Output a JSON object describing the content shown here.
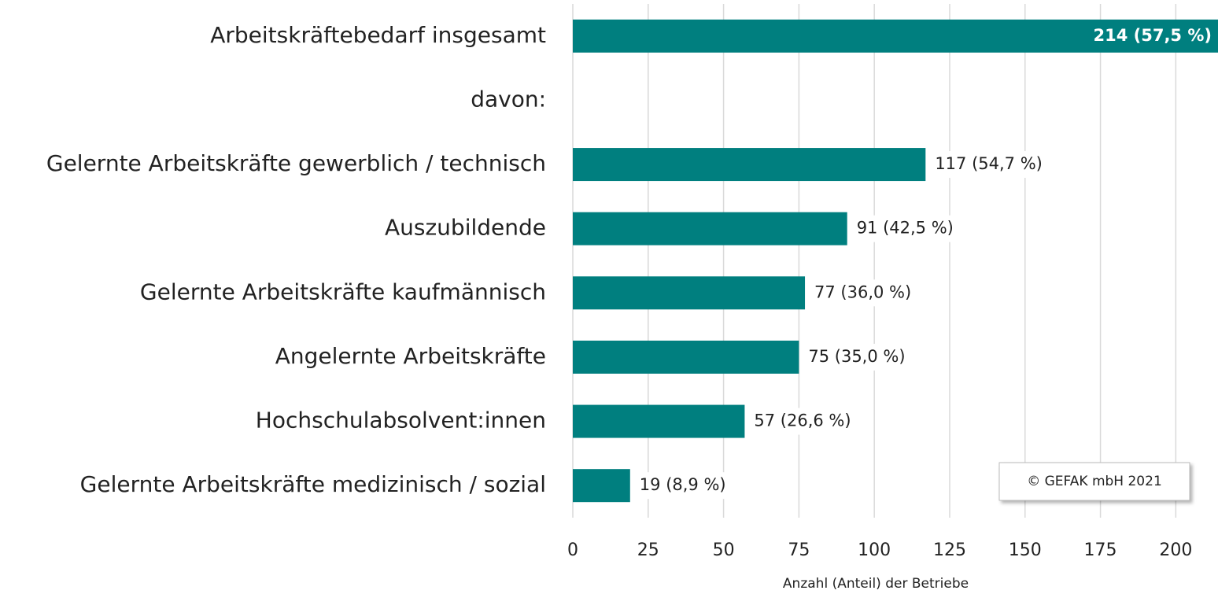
{
  "chart_data": {
    "type": "hbar",
    "categories": [
      "Arbeitskräftebedarf insgesamt",
      "davon:",
      "Gelernte Arbeitskräfte gewerblich / technisch",
      "Auszubildende",
      "Gelernte Arbeitskräfte kaufmännisch",
      "Angelernte Arbeitskräfte",
      "Hochschulabsolvent:innen",
      "Gelernte Arbeitskräfte medizinisch / sozial"
    ],
    "values": [
      214,
      null,
      117,
      91,
      77,
      75,
      57,
      19
    ],
    "value_labels": [
      "214 (57,5 %)",
      null,
      "117 (54,7 %)",
      "91 (42,5 %)",
      "77 (36,0 %)",
      "75 (35,0 %)",
      "57 (26,6 %)",
      "19 (8,9 %)"
    ],
    "color": "#007f7f",
    "xlim": [
      0,
      214
    ],
    "xticks": [
      0,
      25,
      50,
      75,
      100,
      125,
      150,
      175,
      200
    ],
    "grid": true,
    "xlabel": "Anzahl (Anteil) der Betriebe",
    "annotation": "© GEFAK mbH 2021"
  }
}
